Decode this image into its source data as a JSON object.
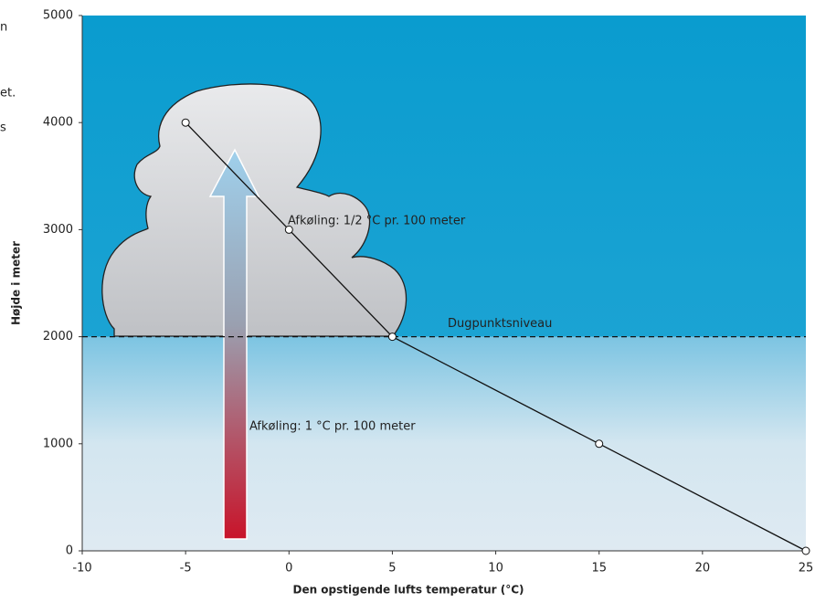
{
  "chart_data": {
    "type": "line",
    "x_label": "Den opstigende lufts temperatur (°C)",
    "y_label": "Højde i meter",
    "x": [
      -5,
      0,
      5,
      15,
      25
    ],
    "values": [
      4000,
      3000,
      2000,
      1000,
      0
    ],
    "color": "#111111",
    "xlim": [
      -10,
      25
    ],
    "xticks": [
      -10,
      -5,
      0,
      5,
      10,
      15,
      20,
      25
    ],
    "ylim": [
      0,
      5000
    ],
    "yticks": [
      0,
      1000,
      2000,
      3000,
      4000,
      5000
    ],
    "reference_line": {
      "y": 2000,
      "label": "Dugpunktsniveau"
    },
    "annotations": [
      "Afkøling: 1/2 °C pr. 100 meter",
      "Afkøling: 1 °C pr. 100 meter"
    ],
    "side_text": [
      "n",
      "et.",
      "s"
    ]
  }
}
